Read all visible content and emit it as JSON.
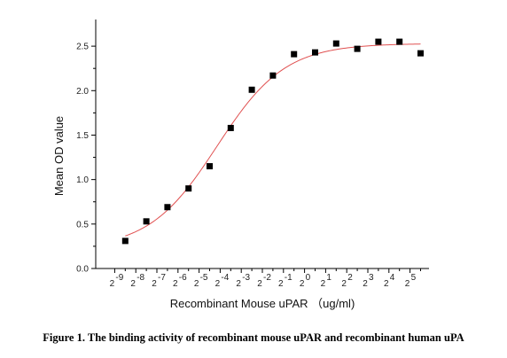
{
  "chart_data": {
    "type": "scatter",
    "xlabel": "Recombinant Mouse uPAR （ug/ml)",
    "ylabel": "Mean OD value",
    "x_scale": "log2",
    "x_tick_labels": [
      {
        "base": "2",
        "exp": "-9",
        "value": -9
      },
      {
        "base": "2",
        "exp": "-8",
        "value": -8
      },
      {
        "base": "2",
        "exp": "-7",
        "value": -7
      },
      {
        "base": "2",
        "exp": "-6",
        "value": -6
      },
      {
        "base": "2",
        "exp": "-5",
        "value": -5
      },
      {
        "base": "2",
        "exp": "-4",
        "value": -4
      },
      {
        "base": "2",
        "exp": "-3",
        "value": -3
      },
      {
        "base": "2",
        "exp": "-2",
        "value": -2
      },
      {
        "base": "2",
        "exp": "-1",
        "value": -1
      },
      {
        "base": "2",
        "exp": "0",
        "value": 0
      },
      {
        "base": "2",
        "exp": "1",
        "value": 1
      },
      {
        "base": "2",
        "exp": "2",
        "value": 2
      },
      {
        "base": "2",
        "exp": "3",
        "value": 3
      },
      {
        "base": "2",
        "exp": "4",
        "value": 4
      },
      {
        "base": "2",
        "exp": "5",
        "value": 5
      }
    ],
    "y_ticks": [
      "0.0",
      "0.5",
      "1.0",
      "1.5",
      "2.0",
      "2.5"
    ],
    "xlim": [
      -9.9,
      5.9
    ],
    "ylim": [
      0.0,
      2.8
    ],
    "grid": false,
    "series": [
      {
        "marker": "square",
        "color": "#000000",
        "points": [
          {
            "x": -8.5,
            "y": 0.31
          },
          {
            "x": -7.5,
            "y": 0.53
          },
          {
            "x": -6.5,
            "y": 0.69
          },
          {
            "x": -5.5,
            "y": 0.9
          },
          {
            "x": -4.5,
            "y": 1.15
          },
          {
            "x": -3.5,
            "y": 1.58
          },
          {
            "x": -2.5,
            "y": 2.01
          },
          {
            "x": -1.5,
            "y": 2.17
          },
          {
            "x": -0.5,
            "y": 2.41
          },
          {
            "x": 0.5,
            "y": 2.43
          },
          {
            "x": 1.5,
            "y": 2.53
          },
          {
            "x": 2.5,
            "y": 2.47
          },
          {
            "x": 3.5,
            "y": 2.55
          },
          {
            "x": 4.5,
            "y": 2.55
          },
          {
            "x": 5.5,
            "y": 2.42
          }
        ]
      }
    ],
    "fit_curve": {
      "type": "sigmoid",
      "color": "#e05050",
      "bottom": 0.22,
      "top": 2.53,
      "x_mid": -4.15,
      "slope": 0.62,
      "x_start": -8.5,
      "x_end": 5.5
    }
  },
  "caption": "Figure 1. The binding activity of recombinant mouse uPAR and recombinant human uPA"
}
